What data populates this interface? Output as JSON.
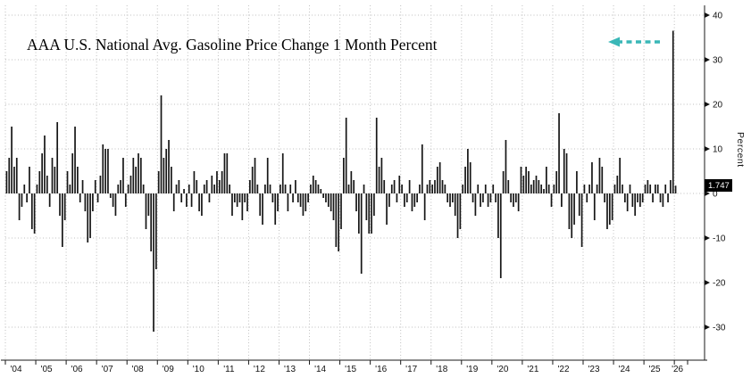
{
  "chart_data": {
    "type": "bar",
    "title": "AAA U.S. National Avg. Gasoline Price Change 1 Month Percent",
    "ylabel": "Percent",
    "xlabel": "",
    "frequency": "monthly",
    "x_start": "2004-01",
    "year_labels": [
      "'04",
      "'05",
      "'06",
      "'07",
      "'08",
      "'09",
      "'10",
      "'11",
      "'12",
      "'13",
      "'14",
      "'15",
      "'16",
      "'17",
      "'18",
      "'19",
      "'20",
      "'21",
      "'22",
      "'23",
      "'24",
      "'25",
      "'26"
    ],
    "y_ticks": [
      40,
      30,
      20,
      10,
      0,
      -10,
      -20,
      -30
    ],
    "ylim": [
      -37,
      42
    ],
    "grid": "dotted",
    "legend": "none",
    "last_value_label": "1.747",
    "last_value": 1.747,
    "bar_color": "#161616",
    "arrow_color": "#3ab7b7",
    "values": [
      5,
      8,
      15,
      6,
      8,
      -6,
      -3,
      2,
      -2,
      6,
      -8,
      -9,
      2,
      5,
      9,
      13,
      4,
      -3,
      8,
      6,
      16,
      -5,
      -12,
      -6,
      5,
      2,
      9,
      15,
      6,
      -2,
      3,
      -4,
      -11,
      -10,
      -4,
      3,
      -2,
      4,
      11,
      10,
      10,
      -1,
      -3,
      -5,
      2,
      3,
      8,
      -3,
      2,
      4,
      8,
      6,
      9,
      8,
      2,
      -8,
      -5,
      -13,
      -31,
      -17,
      5,
      22,
      8,
      10,
      12,
      6,
      -4,
      2,
      3,
      -2,
      1,
      -3,
      2,
      -3,
      5,
      3,
      -4,
      -5,
      2,
      3,
      -2,
      4,
      2,
      5,
      3,
      5,
      9,
      9,
      2,
      -5,
      -2,
      -3,
      -2,
      -6,
      -2,
      -4,
      3,
      6,
      8,
      2,
      -5,
      -7,
      2,
      8,
      2,
      -2,
      -7,
      -4,
      2,
      9,
      2,
      -4,
      2,
      -2,
      3,
      -2,
      -3,
      -5,
      -4,
      -2,
      2,
      4,
      3,
      2,
      1,
      -1,
      -2,
      -3,
      -4,
      -6,
      -12,
      -13,
      -8,
      8,
      17,
      2,
      5,
      3,
      -4,
      -9,
      -18,
      2,
      -6,
      -9,
      -9,
      -5,
      17,
      6,
      8,
      3,
      -7,
      -3,
      2,
      3,
      -2,
      4,
      2,
      -3,
      -2,
      3,
      -4,
      -3,
      -2,
      2,
      11,
      -6,
      2,
      3,
      2,
      3,
      6,
      7,
      3,
      2,
      -2,
      -3,
      -2,
      -5,
      -10,
      -8,
      2,
      6,
      10,
      7,
      -2,
      -5,
      2,
      -3,
      -2,
      2,
      -3,
      -2,
      2,
      -2,
      -10,
      -19,
      5,
      12,
      3,
      -2,
      -3,
      -2,
      -4,
      6,
      4,
      6,
      5,
      2,
      3,
      4,
      3,
      2,
      1,
      6,
      2,
      -3,
      2,
      5,
      18,
      -3,
      10,
      9,
      -8,
      -10,
      -7,
      5,
      -5,
      -12,
      2,
      -2,
      2,
      7,
      -6,
      2,
      8,
      6,
      -2,
      -8,
      -7,
      -6,
      2,
      4,
      8,
      2,
      -2,
      -4,
      2,
      -3,
      -5,
      -2,
      -3,
      -2,
      2,
      3,
      2,
      -2,
      2,
      2,
      -2,
      -3,
      2,
      -2,
      3,
      36.5,
      1.747
    ]
  }
}
